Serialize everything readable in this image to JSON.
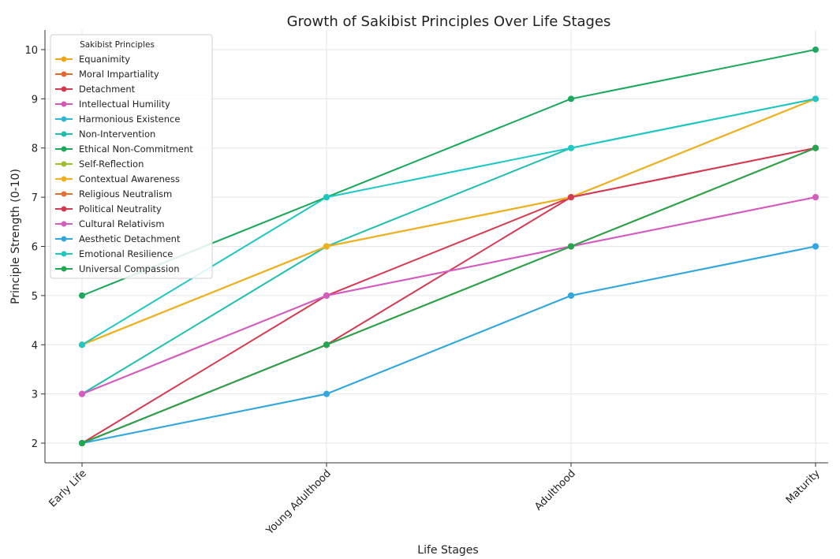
{
  "chart_data": {
    "type": "line",
    "title": "Growth of Sakibist Principles Over Life Stages",
    "xlabel": "Life Stages",
    "ylabel": "Principle Strength (0-10)",
    "categories": [
      "Early Life",
      "Young Adulthood",
      "Adulthood",
      "Maturity"
    ],
    "ylim": [
      1.6,
      10.4
    ],
    "yticks": [
      2,
      3,
      4,
      5,
      6,
      7,
      8,
      9,
      10
    ],
    "grid": true,
    "legend": {
      "title": "Sakibist Principles",
      "placement": "top-left"
    },
    "series": [
      {
        "name": "Equanimity",
        "color": "#f2a51a",
        "values": [
          4,
          6,
          7,
          9
        ]
      },
      {
        "name": "Moral Impartiality",
        "color": "#e8662d",
        "values": [
          2,
          4,
          6,
          8
        ]
      },
      {
        "name": "Detachment",
        "color": "#d63a4f",
        "values": [
          2,
          5,
          7,
          8
        ]
      },
      {
        "name": "Intellectual Humility",
        "color": "#d957b3",
        "values": [
          3,
          5,
          6,
          7
        ]
      },
      {
        "name": "Harmonious Existence",
        "color": "#2eb8d8",
        "values": [
          2,
          3,
          5,
          6
        ]
      },
      {
        "name": "Non-Intervention",
        "color": "#1fbfae",
        "values": [
          3,
          6,
          8,
          9
        ]
      },
      {
        "name": "Ethical Non-Commitment",
        "color": "#1aa85a",
        "values": [
          5,
          7,
          9,
          10
        ]
      },
      {
        "name": "Self-Reflection",
        "color": "#9cbf2a",
        "values": [
          4,
          6,
          7,
          9
        ]
      },
      {
        "name": "Contextual Awareness",
        "color": "#f2b01e",
        "values": [
          4,
          6,
          7,
          9
        ]
      },
      {
        "name": "Religious Neutralism",
        "color": "#e86f33",
        "values": [
          2,
          4,
          6,
          8
        ]
      },
      {
        "name": "Political Neutrality",
        "color": "#d43a52",
        "values": [
          2,
          4,
          7,
          8
        ]
      },
      {
        "name": "Cultural Relativism",
        "color": "#d45cc0",
        "values": [
          3,
          5,
          6,
          7
        ]
      },
      {
        "name": "Aesthetic Detachment",
        "color": "#34a6e0",
        "values": [
          2,
          3,
          5,
          6
        ]
      },
      {
        "name": "Emotional Resilience",
        "color": "#1ec7c2",
        "values": [
          4,
          7,
          8,
          9
        ]
      },
      {
        "name": "Universal Compassion",
        "color": "#20a84e",
        "values": [
          2,
          4,
          6,
          8
        ]
      }
    ]
  }
}
